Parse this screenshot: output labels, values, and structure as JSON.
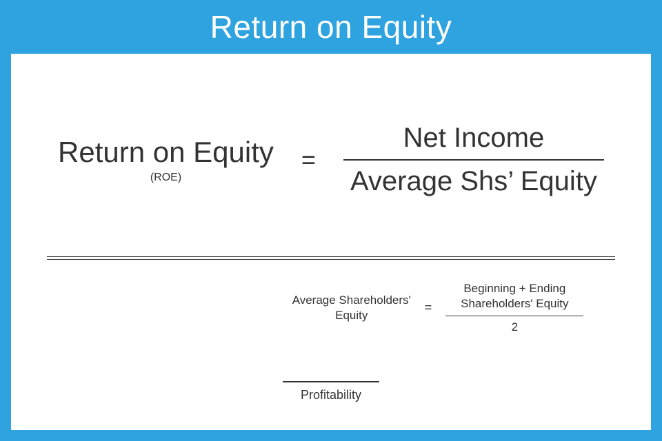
{
  "colors": {
    "background": "#2ea3df",
    "panel": "#ffffff",
    "text": "#333333",
    "title": "#ffffff"
  },
  "header": {
    "title": "Return on Equity"
  },
  "main_formula": {
    "lhs_label": "Return on Equity",
    "lhs_abbrev": "(ROE)",
    "equals": "=",
    "numerator": "Net Income",
    "denominator": "Average Shs’ Equity"
  },
  "sub_formula": {
    "lhs_line1": "Average Shareholders'",
    "lhs_line2": "Equity",
    "equals": "=",
    "numerator_line1": "Beginning + Ending",
    "numerator_line2": "Shareholders' Equity",
    "denominator": "2"
  },
  "category": {
    "label": "Profitability"
  },
  "typography": {
    "header_fontsize": 46,
    "main_lhs_fontsize": 42,
    "main_abbrev_fontsize": 16,
    "main_frac_fontsize": 40,
    "sub_fontsize": 17,
    "category_fontsize": 18,
    "font_weight": 300
  }
}
